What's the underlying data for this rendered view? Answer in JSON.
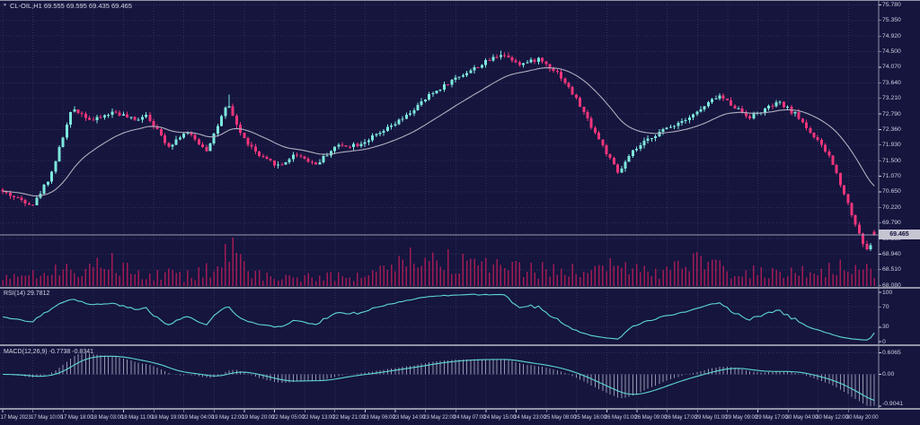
{
  "header": {
    "title": "CL-OIL,H1 69.555 69.595 69.435 69.465",
    "menu_icon": "chart-menu-arrow"
  },
  "price_axis": {
    "labels": [
      "75.780",
      "75.350",
      "74.920",
      "74.500",
      "74.070",
      "73.640",
      "73.210",
      "72.790",
      "72.360",
      "71.930",
      "71.500",
      "71.070",
      "70.650",
      "70.220",
      "69.790",
      "69.360",
      "68.940",
      "68.510",
      "68.080"
    ],
    "current_price": "69.465"
  },
  "time_axis": {
    "labels": [
      "17 May 2023",
      "17 May 10:00",
      "17 May 18:00",
      "18 May 03:00",
      "18 May 11:00",
      "18 May 19:00",
      "19 May 04:00",
      "19 May 12:00",
      "19 May 20:00",
      "22 May 05:00",
      "22 May 13:00",
      "22 May 21:00",
      "23 May 06:00",
      "23 May 14:00",
      "23 May 22:00",
      "24 May 07:00",
      "24 May 15:00",
      "24 May 23:00",
      "25 May 08:00",
      "25 May 16:00",
      "26 May 01:00",
      "26 May 09:00",
      "26 May 17:00",
      "29 May 01:00",
      "29 May 09:00",
      "29 May 17:00",
      "30 May 04:00",
      "30 May 12:00",
      "30 May 20:00"
    ]
  },
  "panels": {
    "rsi": {
      "label": "RSI(14) 29.7812",
      "axis_labels": [
        "100",
        "70",
        "30",
        "0"
      ],
      "axis_values": [
        100,
        70,
        30,
        0
      ],
      "level_lines": [
        70,
        30
      ]
    },
    "macd": {
      "label": "MACD(12,26,9) -0.7738 -0.8341",
      "axis_labels": [
        "0.6065",
        "0.00",
        "-0.9041"
      ],
      "axis_values": [
        0.6065,
        0.0,
        -0.9041
      ]
    }
  },
  "colors": {
    "background": "#15153E",
    "grid": "#30305E",
    "bull": "#7DE8DC",
    "bear": "#F0357A",
    "ma_line": "#AFAFBE",
    "volume": "#A01B54",
    "rsi_line": "#5FD8D2",
    "macd_signal": "#5FD8D2",
    "macd_histogram": "#9595AE",
    "separator": "#9094A6",
    "axis_text": "#CDCDE0",
    "bid_line": "#9C9CB2",
    "price_box_bg": "#C6C6D3",
    "price_box_text": "#12123A"
  },
  "chart_data": {
    "type": "candlestick",
    "symbol": "CL-OIL",
    "timeframe": "H1",
    "title": "CL-OIL,H1",
    "last_candle": {
      "open": 69.555,
      "high": 69.595,
      "low": 69.435,
      "close": 69.465
    },
    "price_ticks": [
      75.78,
      75.35,
      74.92,
      74.5,
      74.07,
      73.64,
      73.21,
      72.79,
      72.36,
      71.93,
      71.5,
      71.07,
      70.65,
      70.22,
      69.79,
      69.36,
      68.94,
      68.51,
      68.08
    ],
    "price_range": [
      68.08,
      75.78
    ],
    "candle_count": 232,
    "close_path": [
      [
        0.0,
        70.65
      ],
      [
        0.018,
        70.45
      ],
      [
        0.035,
        70.3
      ],
      [
        0.055,
        71.1
      ],
      [
        0.08,
        72.95
      ],
      [
        0.103,
        72.6
      ],
      [
        0.128,
        72.85
      ],
      [
        0.152,
        72.6
      ],
      [
        0.164,
        72.8
      ],
      [
        0.19,
        71.9
      ],
      [
        0.21,
        72.3
      ],
      [
        0.234,
        71.8
      ],
      [
        0.258,
        73.05
      ],
      [
        0.275,
        72.15
      ],
      [
        0.295,
        71.6
      ],
      [
        0.318,
        71.35
      ],
      [
        0.336,
        71.7
      ],
      [
        0.359,
        71.4
      ],
      [
        0.382,
        71.9
      ],
      [
        0.408,
        71.95
      ],
      [
        0.433,
        72.25
      ],
      [
        0.462,
        72.7
      ],
      [
        0.49,
        73.3
      ],
      [
        0.518,
        73.75
      ],
      [
        0.546,
        74.1
      ],
      [
        0.572,
        74.45
      ],
      [
        0.595,
        74.15
      ],
      [
        0.615,
        74.3
      ],
      [
        0.638,
        73.9
      ],
      [
        0.659,
        73.15
      ],
      [
        0.679,
        72.3
      ],
      [
        0.706,
        71.15
      ],
      [
        0.723,
        71.75
      ],
      [
        0.747,
        72.2
      ],
      [
        0.771,
        72.5
      ],
      [
        0.798,
        72.85
      ],
      [
        0.821,
        73.3
      ],
      [
        0.839,
        73.0
      ],
      [
        0.856,
        72.7
      ],
      [
        0.874,
        72.9
      ],
      [
        0.89,
        73.1
      ],
      [
        0.911,
        72.75
      ],
      [
        0.931,
        72.15
      ],
      [
        0.949,
        71.6
      ],
      [
        0.964,
        70.7
      ],
      [
        0.976,
        69.9
      ],
      [
        0.986,
        69.3
      ],
      [
        0.992,
        69.0
      ],
      [
        1.0,
        69.465
      ]
    ],
    "volume_envelope": [
      [
        0.0,
        0.25
      ],
      [
        0.05,
        0.45
      ],
      [
        0.09,
        0.75
      ],
      [
        0.13,
        0.85
      ],
      [
        0.17,
        0.45
      ],
      [
        0.21,
        0.35
      ],
      [
        0.255,
        0.95
      ],
      [
        0.3,
        0.4
      ],
      [
        0.36,
        0.3
      ],
      [
        0.42,
        0.4
      ],
      [
        0.47,
        0.9
      ],
      [
        0.52,
        0.75
      ],
      [
        0.57,
        0.65
      ],
      [
        0.62,
        0.55
      ],
      [
        0.66,
        0.5
      ],
      [
        0.7,
        0.7
      ],
      [
        0.75,
        0.45
      ],
      [
        0.8,
        0.8
      ],
      [
        0.85,
        0.5
      ],
      [
        0.9,
        0.4
      ],
      [
        0.94,
        0.55
      ],
      [
        0.97,
        0.65
      ],
      [
        1.0,
        0.5
      ]
    ],
    "indicators": {
      "ma": {
        "period": 24
      },
      "rsi": {
        "period": 14,
        "current": 29.7812,
        "range": [
          0,
          100
        ],
        "levels": [
          70,
          30
        ]
      },
      "macd": {
        "fast": 12,
        "slow": 26,
        "signal": 9,
        "current_macd": -0.7738,
        "current_signal": -0.8341,
        "range": [
          -0.9041,
          0.6065
        ]
      }
    },
    "seed": 42
  }
}
